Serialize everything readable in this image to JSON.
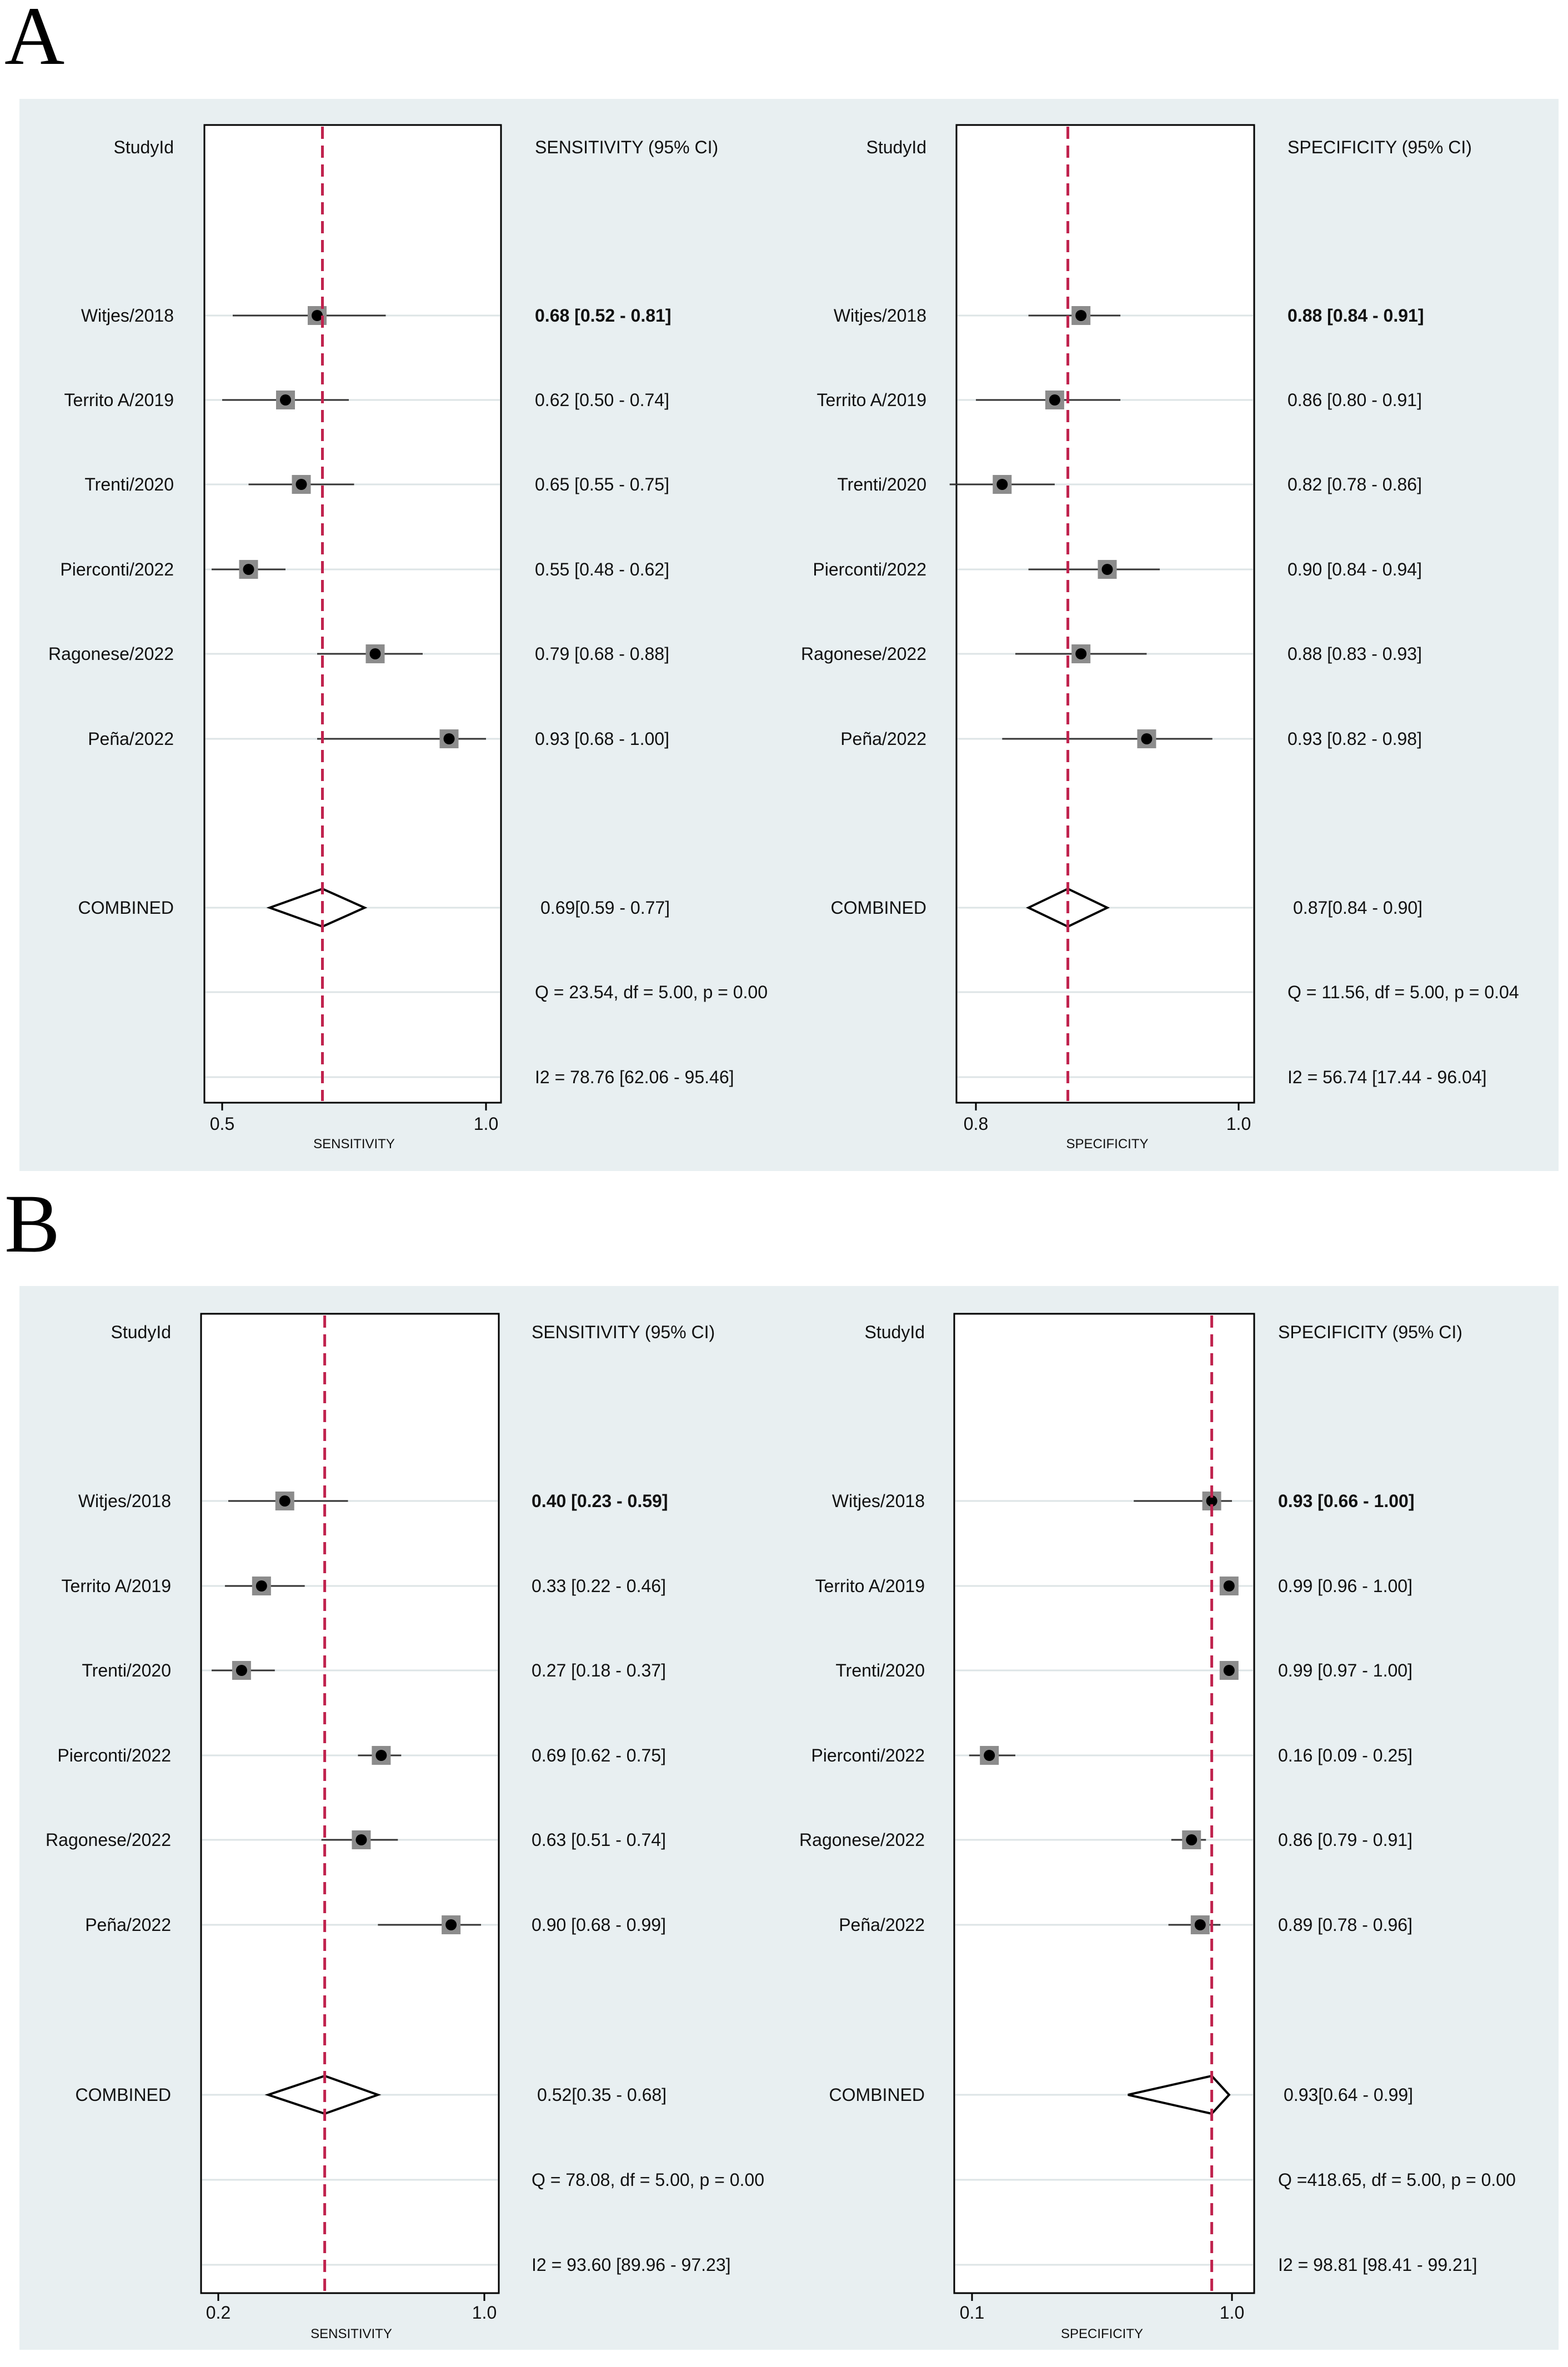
{
  "colors": {
    "panel_bg": "#e8eff1",
    "plot_bg": "#ffffff",
    "ref_line": "#c0234e",
    "marker_square": "#8c8c8c",
    "marker_dot": "#000000",
    "row_line": "#dde4e6"
  },
  "panels": [
    {
      "label": "A",
      "chart_data": [
        {
          "type": "forest",
          "measure": "sensitivity",
          "study_header": "StudyId",
          "ci_header": "SENSITIVITY (95% CI)",
          "xlabel": "SENSITIVITY",
          "xlim": [
            0.5,
            1.0
          ],
          "xticks": [
            {
              "v": 0.5,
              "label": "0.5"
            },
            {
              "v": 1.0,
              "label": "1.0"
            }
          ],
          "reference": 0.69,
          "studies": [
            {
              "name": "Witjes/2018",
              "est": 0.68,
              "lo": 0.52,
              "hi": 0.81,
              "ci_text": "0.68 [0.52 - 0.81]",
              "bold": true
            },
            {
              "name": "Territo A/2019",
              "est": 0.62,
              "lo": 0.5,
              "hi": 0.74,
              "ci_text": "0.62 [0.50 - 0.74]",
              "bold": false
            },
            {
              "name": "Trenti/2020",
              "est": 0.65,
              "lo": 0.55,
              "hi": 0.75,
              "ci_text": "0.65 [0.55 - 0.75]",
              "bold": false
            },
            {
              "name": "Pierconti/2022",
              "est": 0.55,
              "lo": 0.48,
              "hi": 0.62,
              "ci_text": "0.55 [0.48 - 0.62]",
              "bold": false
            },
            {
              "name": "Ragonese/2022",
              "est": 0.79,
              "lo": 0.68,
              "hi": 0.88,
              "ci_text": "0.79 [0.68 - 0.88]",
              "bold": false
            },
            {
              "name": "Peña/2022",
              "est": 0.93,
              "lo": 0.68,
              "hi": 1.0,
              "ci_text": "0.93 [0.68 - 1.00]",
              "bold": false
            }
          ],
          "combined": {
            "name": "COMBINED",
            "est": 0.69,
            "lo": 0.59,
            "hi": 0.77,
            "ci_text": "0.69[0.59 - 0.77]"
          },
          "q_text": "Q = 23.54, df = 5.00, p =  0.00",
          "i2_text": "I2 = 78.76 [62.06 - 95.46]"
        },
        {
          "type": "forest",
          "measure": "specificity",
          "study_header": "StudyId",
          "ci_header": "SPECIFICITY (95% CI)",
          "xlabel": "SPECIFICITY",
          "xlim": [
            0.8,
            1.0
          ],
          "xticks": [
            {
              "v": 0.8,
              "label": "0.8"
            },
            {
              "v": 1.0,
              "label": "1.0"
            }
          ],
          "reference": 0.87,
          "studies": [
            {
              "name": "Witjes/2018",
              "est": 0.88,
              "lo": 0.84,
              "hi": 0.91,
              "ci_text": "0.88 [0.84 - 0.91]",
              "bold": true
            },
            {
              "name": "Territo A/2019",
              "est": 0.86,
              "lo": 0.8,
              "hi": 0.91,
              "ci_text": "0.86 [0.80 - 0.91]",
              "bold": false
            },
            {
              "name": "Trenti/2020",
              "est": 0.82,
              "lo": 0.78,
              "hi": 0.86,
              "ci_text": "0.82 [0.78 - 0.86]",
              "bold": false
            },
            {
              "name": "Pierconti/2022",
              "est": 0.9,
              "lo": 0.84,
              "hi": 0.94,
              "ci_text": "0.90 [0.84 - 0.94]",
              "bold": false
            },
            {
              "name": "Ragonese/2022",
              "est": 0.88,
              "lo": 0.83,
              "hi": 0.93,
              "ci_text": "0.88 [0.83 - 0.93]",
              "bold": false
            },
            {
              "name": "Peña/2022",
              "est": 0.93,
              "lo": 0.82,
              "hi": 0.98,
              "ci_text": "0.93 [0.82 - 0.98]",
              "bold": false
            }
          ],
          "combined": {
            "name": "COMBINED",
            "est": 0.87,
            "lo": 0.84,
            "hi": 0.9,
            "ci_text": "0.87[0.84 - 0.90]"
          },
          "q_text": "Q = 11.56, df = 5.00, p =  0.04",
          "i2_text": "I2 = 56.74 [17.44 - 96.04]"
        }
      ]
    },
    {
      "label": "B",
      "chart_data": [
        {
          "type": "forest",
          "measure": "sensitivity",
          "study_header": "StudyId",
          "ci_header": "SENSITIVITY (95% CI)",
          "xlabel": "SENSITIVITY",
          "xlim": [
            0.2,
            1.0
          ],
          "xticks": [
            {
              "v": 0.2,
              "label": "0.2"
            },
            {
              "v": 1.0,
              "label": "1.0"
            }
          ],
          "reference": 0.52,
          "studies": [
            {
              "name": "Witjes/2018",
              "est": 0.4,
              "lo": 0.23,
              "hi": 0.59,
              "ci_text": "0.40 [0.23 - 0.59]",
              "bold": true
            },
            {
              "name": "Territo A/2019",
              "est": 0.33,
              "lo": 0.22,
              "hi": 0.46,
              "ci_text": "0.33 [0.22 - 0.46]",
              "bold": false
            },
            {
              "name": "Trenti/2020",
              "est": 0.27,
              "lo": 0.18,
              "hi": 0.37,
              "ci_text": "0.27 [0.18 - 0.37]",
              "bold": false
            },
            {
              "name": "Pierconti/2022",
              "est": 0.69,
              "lo": 0.62,
              "hi": 0.75,
              "ci_text": "0.69 [0.62 - 0.75]",
              "bold": false
            },
            {
              "name": "Ragonese/2022",
              "est": 0.63,
              "lo": 0.51,
              "hi": 0.74,
              "ci_text": "0.63 [0.51 - 0.74]",
              "bold": false
            },
            {
              "name": "Peña/2022",
              "est": 0.9,
              "lo": 0.68,
              "hi": 0.99,
              "ci_text": "0.90 [0.68 - 0.99]",
              "bold": false
            }
          ],
          "combined": {
            "name": "COMBINED",
            "est": 0.52,
            "lo": 0.35,
            "hi": 0.68,
            "ci_text": "0.52[0.35 - 0.68]"
          },
          "q_text": "Q = 78.08, df = 5.00, p =  0.00",
          "i2_text": "I2 = 93.60 [89.96 - 97.23]"
        },
        {
          "type": "forest",
          "measure": "specificity",
          "study_header": "StudyId",
          "ci_header": "SPECIFICITY (95% CI)",
          "xlabel": "SPECIFICITY",
          "xlim": [
            0.1,
            1.0
          ],
          "xticks": [
            {
              "v": 0.1,
              "label": "0.1"
            },
            {
              "v": 1.0,
              "label": "1.0"
            }
          ],
          "reference": 0.93,
          "studies": [
            {
              "name": "Witjes/2018",
              "est": 0.93,
              "lo": 0.66,
              "hi": 1.0,
              "ci_text": "0.93 [0.66 - 1.00]",
              "bold": true
            },
            {
              "name": "Territo A/2019",
              "est": 0.99,
              "lo": 0.96,
              "hi": 1.0,
              "ci_text": "0.99 [0.96 - 1.00]",
              "bold": false
            },
            {
              "name": "Trenti/2020",
              "est": 0.99,
              "lo": 0.97,
              "hi": 1.0,
              "ci_text": "0.99 [0.97 - 1.00]",
              "bold": false
            },
            {
              "name": "Pierconti/2022",
              "est": 0.16,
              "lo": 0.09,
              "hi": 0.25,
              "ci_text": "0.16 [0.09 - 0.25]",
              "bold": false
            },
            {
              "name": "Ragonese/2022",
              "est": 0.86,
              "lo": 0.79,
              "hi": 0.91,
              "ci_text": "0.86 [0.79 - 0.91]",
              "bold": false
            },
            {
              "name": "Peña/2022",
              "est": 0.89,
              "lo": 0.78,
              "hi": 0.96,
              "ci_text": "0.89 [0.78 - 0.96]",
              "bold": false
            }
          ],
          "combined": {
            "name": "COMBINED",
            "est": 0.93,
            "lo": 0.64,
            "hi": 0.99,
            "ci_text": "0.93[0.64 - 0.99]"
          },
          "q_text": "Q =418.65, df = 5.00, p =  0.00",
          "i2_text": "I2 = 98.81 [98.41 - 99.21]"
        }
      ]
    }
  ]
}
